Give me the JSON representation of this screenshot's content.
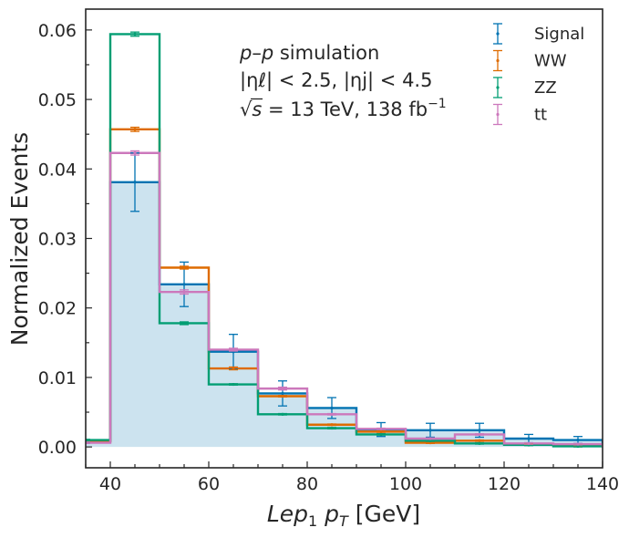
{
  "chart_data": {
    "type": "histogram",
    "xlabel_var": "Lep",
    "xlabel_sub": "1",
    "xlabel_pt": "p",
    "xlabel_pt_sub": "T",
    "xlabel_unit": "[GeV]",
    "ylabel": "Normalized Events",
    "xlim": [
      35,
      140
    ],
    "ylim": [
      -0.003,
      0.063
    ],
    "xticks": [
      40,
      60,
      80,
      100,
      120,
      140
    ],
    "yticks": [
      0.0,
      0.01,
      0.02,
      0.03,
      0.04,
      0.05,
      0.06
    ],
    "ytick_labels": [
      "0.00",
      "0.01",
      "0.02",
      "0.03",
      "0.04",
      "0.05",
      "0.06"
    ],
    "bin_edges": [
      30,
      40,
      50,
      60,
      70,
      80,
      90,
      100,
      110,
      120,
      130,
      140
    ],
    "annotations": {
      "line1_a": "p",
      "line1_b": "–",
      "line1_c": "p",
      "line1_d": " simulation",
      "line2": "|ηℓ| < 2.5, |ηj| < 4.5",
      "line3_a": "√",
      "line3_b": "s",
      "line3_c": " = 13 TeV, 138 fb",
      "line3_d": "−1"
    },
    "series": [
      {
        "name": "Signal",
        "color": "#0173b2",
        "filled": true,
        "fill": "#cce3ef",
        "values": [
          0.0008,
          0.0381,
          0.0234,
          0.0137,
          0.0077,
          0.0056,
          0.0025,
          0.0024,
          0.0024,
          0.0012,
          0.001
        ],
        "errors": [
          0.0002,
          0.0042,
          0.0032,
          0.0025,
          0.0018,
          0.0015,
          0.001,
          0.001,
          0.001,
          0.0006,
          0.0005
        ]
      },
      {
        "name": "WW",
        "color": "#de6b00",
        "filled": false,
        "values": [
          0.0008,
          0.0457,
          0.0258,
          0.0113,
          0.0073,
          0.0032,
          0.0022,
          0.0006,
          0.0009,
          0.0004,
          0.0002
        ],
        "errors": [
          0.0001,
          0.0003,
          0.0002,
          0.0002,
          0.0001,
          0.0001,
          0.0001,
          0.0001,
          0.0001,
          0.0001,
          0.0001
        ]
      },
      {
        "name": "ZZ",
        "color": "#029e73",
        "filled": false,
        "values": [
          0.001,
          0.0594,
          0.0178,
          0.009,
          0.0047,
          0.0027,
          0.0018,
          0.0009,
          0.0005,
          0.0003,
          0.0001
        ],
        "errors": [
          0.0001,
          0.0003,
          0.0002,
          0.0001,
          0.0001,
          0.0001,
          0.0001,
          0.0001,
          0.0001,
          0.0001,
          0.0001
        ]
      },
      {
        "name": "tt",
        "color": "#cc78bc",
        "filled": false,
        "values": [
          0.0006,
          0.0423,
          0.0223,
          0.014,
          0.0084,
          0.0047,
          0.0026,
          0.0012,
          0.0018,
          0.0005,
          0.0004
        ],
        "errors": [
          0.0001,
          0.0003,
          0.0003,
          0.0002,
          0.0002,
          0.0001,
          0.0001,
          0.0001,
          0.0001,
          0.0001,
          0.0001
        ]
      }
    ],
    "legend": {
      "position": "top-right",
      "entries": [
        "Signal",
        "WW",
        "ZZ",
        "tt"
      ]
    }
  }
}
